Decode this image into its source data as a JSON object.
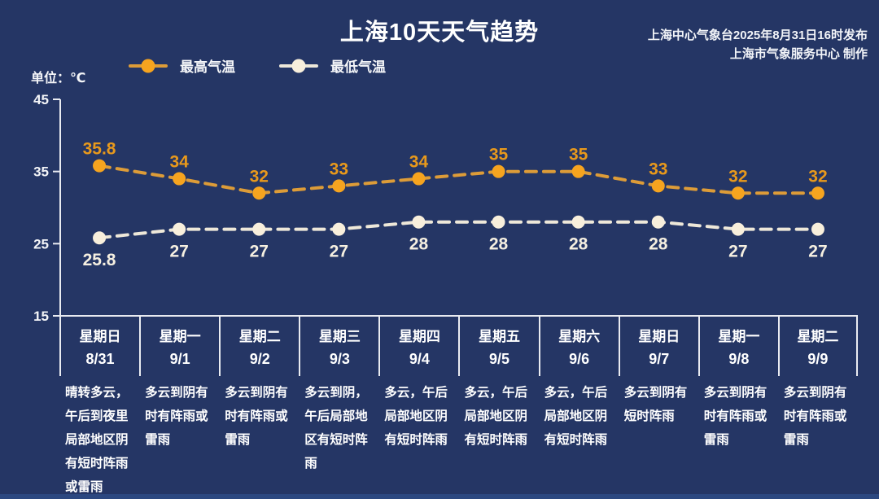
{
  "header": {
    "title": "上海10天天气趋势",
    "source_line1": "上海中心气象台2025年8月31日16时发布",
    "source_line2": "上海市气象服务中心 制作"
  },
  "legend": {
    "high_label": "最高气温",
    "low_label": "最低气温"
  },
  "unit_label": "单位：℃",
  "colors": {
    "background": "#253665",
    "axis": "#e9ebf1",
    "high_marker": "#f6a41f",
    "high_line": "#dd9c38",
    "high_label": "#e8991c",
    "low_marker": "#f8efdc",
    "low_line": "#eee8d9",
    "low_label": "#f6f0e1",
    "bottom_strip": "#2c4880"
  },
  "chart_data": {
    "type": "line",
    "title": "上海10天天气趋势",
    "x": [
      "8/31",
      "9/1",
      "9/2",
      "9/3",
      "9/4",
      "9/5",
      "9/6",
      "9/7",
      "9/8",
      "9/9"
    ],
    "series": [
      {
        "name": "最高气温",
        "values": [
          35.8,
          34,
          32,
          33,
          34,
          35,
          35,
          33,
          32,
          32
        ],
        "color": "#f6a41f",
        "line_color": "#dd9c38",
        "label_color": "#e8991c"
      },
      {
        "name": "最低气温",
        "values": [
          25.8,
          27,
          27,
          27,
          28,
          28,
          28,
          28,
          27,
          27
        ],
        "color": "#f8efdc",
        "line_color": "#eee8d9",
        "label_color": "#f6f0e1"
      }
    ],
    "ylabel": "单位：℃",
    "ylim": [
      15,
      45
    ],
    "yticks": [
      45,
      35,
      25,
      15
    ],
    "grid": false,
    "line_style": "dashed",
    "legend_position": "top-left"
  },
  "days": [
    {
      "weekday": "星期日",
      "date": "8/31",
      "forecast": "晴转多云，\n午后到夜里\n局部地区阴\n有短时阵雨\n或雷雨"
    },
    {
      "weekday": "星期一",
      "date": "9/1",
      "forecast": "多云到阴有\n时有阵雨或\n雷雨"
    },
    {
      "weekday": "星期二",
      "date": "9/2",
      "forecast": "多云到阴有\n时有阵雨或\n雷雨"
    },
    {
      "weekday": "星期三",
      "date": "9/3",
      "forecast": "多云到阴，\n午后局部地\n区有短时阵\n雨"
    },
    {
      "weekday": "星期四",
      "date": "9/4",
      "forecast": "多云，午后\n局部地区阴\n有短时阵雨"
    },
    {
      "weekday": "星期五",
      "date": "9/5",
      "forecast": "多云，午后\n局部地区阴\n有短时阵雨"
    },
    {
      "weekday": "星期六",
      "date": "9/6",
      "forecast": "多云，午后\n局部地区阴\n有短时阵雨"
    },
    {
      "weekday": "星期日",
      "date": "9/7",
      "forecast": "多云到阴有\n短时阵雨"
    },
    {
      "weekday": "星期一",
      "date": "9/8",
      "forecast": "多云到阴有\n时有阵雨或\n雷雨"
    },
    {
      "weekday": "星期二",
      "date": "9/9",
      "forecast": "多云到阴有\n时有阵雨或\n雷雨"
    }
  ]
}
